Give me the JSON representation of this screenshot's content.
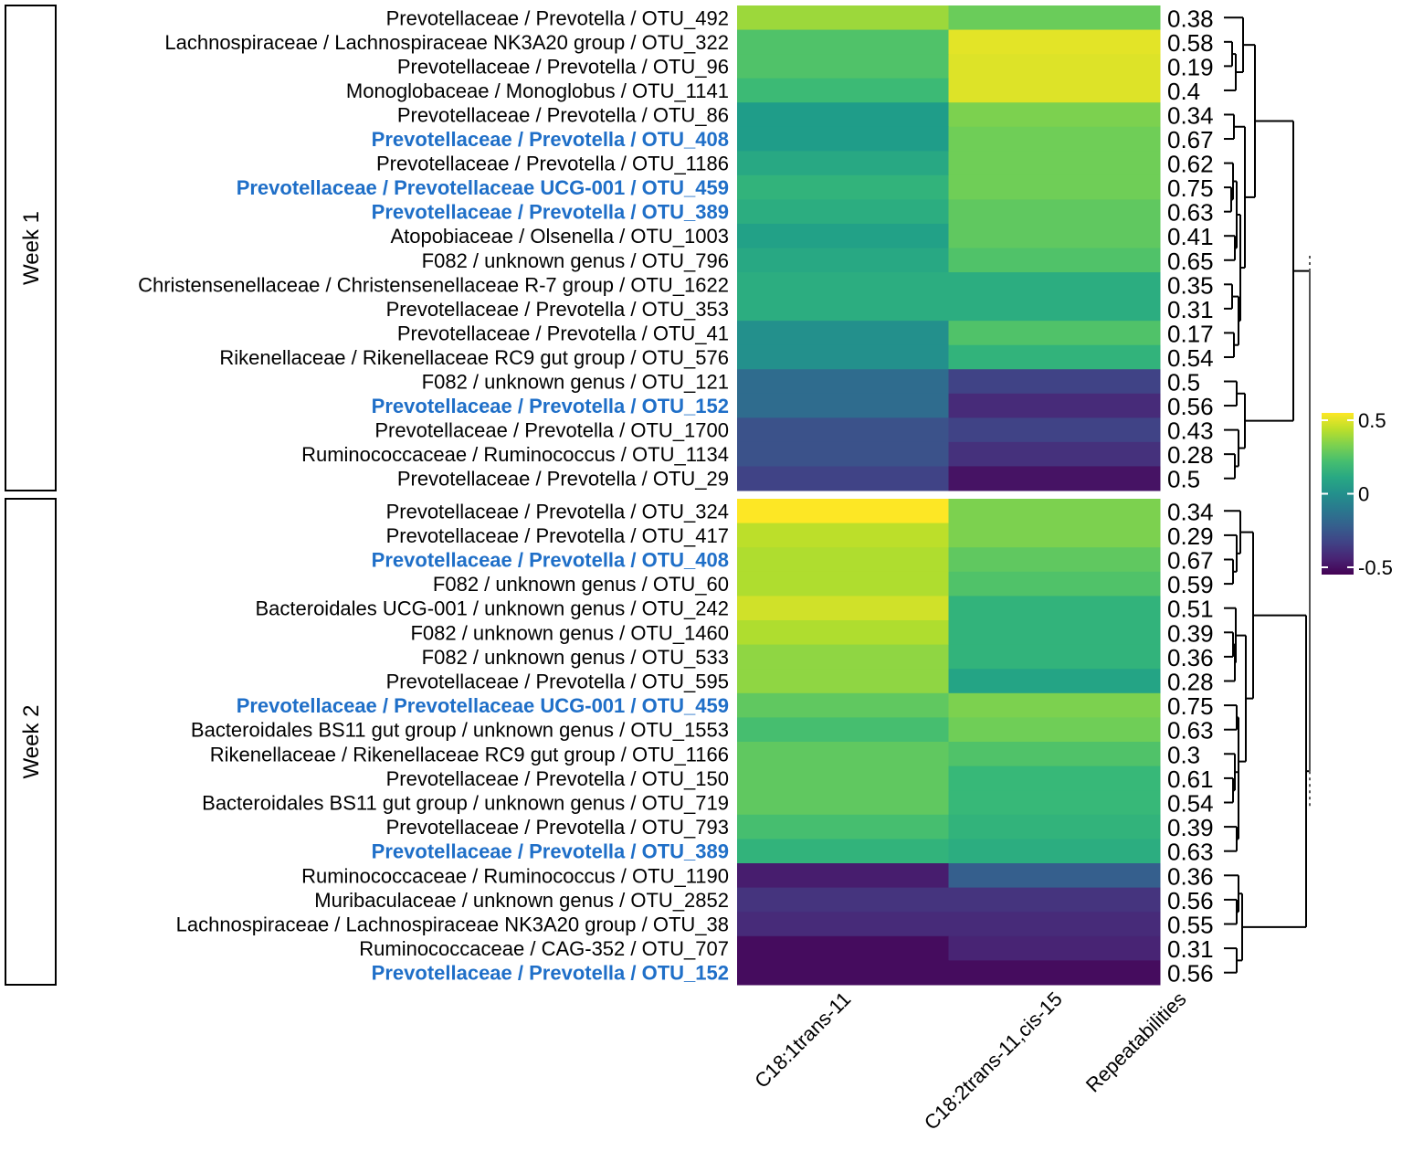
{
  "chart_data": {
    "type": "heatmap",
    "columns": [
      "C18:1trans-11",
      "C18:2trans-11,cis-15",
      "Repeatabilities"
    ],
    "color_scale": {
      "name": "viridis",
      "min": -0.5,
      "max": 0.5,
      "ticks": [
        0.5,
        0,
        -0.5
      ],
      "tick_labels": [
        "0.5",
        "0",
        "-0.5"
      ]
    },
    "highlight_color": "#1f6fc8",
    "groups": [
      {
        "label": "Week 1",
        "rows": [
          {
            "label": "Prevotellaceae / Prevotella / OTU_492",
            "values": [
              0.35,
              0.27
            ],
            "rep": "0.38",
            "hl": false
          },
          {
            "label": "Lachnospiraceae / Lachnospiraceae NK3A20 group / OTU_322",
            "values": [
              0.22,
              0.46
            ],
            "rep": "0.58",
            "hl": false
          },
          {
            "label": "Prevotellaceae / Prevotella / OTU_96",
            "values": [
              0.22,
              0.45
            ],
            "rep": "0.19",
            "hl": false
          },
          {
            "label": "Monoglobaceae / Monoglobus / OTU_1141",
            "values": [
              0.18,
              0.45
            ],
            "rep": "0.4",
            "hl": false
          },
          {
            "label": "Prevotellaceae / Prevotella / OTU_86",
            "values": [
              0.05,
              0.3
            ],
            "rep": "0.34",
            "hl": false
          },
          {
            "label": "Prevotellaceae / Prevotella / OTU_408",
            "values": [
              0.05,
              0.28
            ],
            "rep": "0.67",
            "hl": true
          },
          {
            "label": "Prevotellaceae / Prevotella / OTU_1186",
            "values": [
              0.1,
              0.28
            ],
            "rep": "0.62",
            "hl": false
          },
          {
            "label": "Prevotellaceae / Prevotellaceae UCG-001 / OTU_459",
            "values": [
              0.15,
              0.28
            ],
            "rep": "0.75",
            "hl": true
          },
          {
            "label": "Prevotellaceae / Prevotella / OTU_389",
            "values": [
              0.12,
              0.25
            ],
            "rep": "0.63",
            "hl": true
          },
          {
            "label": "Atopobiaceae / Olsenella / OTU_1003",
            "values": [
              0.07,
              0.25
            ],
            "rep": "0.41",
            "hl": false
          },
          {
            "label": "F082 / unknown genus / OTU_796",
            "values": [
              0.1,
              0.22
            ],
            "rep": "0.65",
            "hl": false
          },
          {
            "label": "Christensenellaceae / Christensenellaceae R-7 group / OTU_1622",
            "values": [
              0.12,
              0.12
            ],
            "rep": "0.35",
            "hl": false
          },
          {
            "label": "Prevotellaceae / Prevotella / OTU_353",
            "values": [
              0.12,
              0.12
            ],
            "rep": "0.31",
            "hl": false
          },
          {
            "label": "Prevotellaceae / Prevotella / OTU_41",
            "values": [
              0.0,
              0.22
            ],
            "rep": "0.17",
            "hl": false
          },
          {
            "label": "Rikenellaceae / Rikenellaceae RC9 gut group / OTU_576",
            "values": [
              0.0,
              0.15
            ],
            "rep": "0.54",
            "hl": false
          },
          {
            "label": "F082 / unknown genus / OTU_121",
            "values": [
              -0.15,
              -0.3
            ],
            "rep": "0.5",
            "hl": false
          },
          {
            "label": "Prevotellaceae / Prevotella / OTU_152",
            "values": [
              -0.15,
              -0.38
            ],
            "rep": "0.56",
            "hl": true
          },
          {
            "label": "Prevotellaceae / Prevotella / OTU_1700",
            "values": [
              -0.25,
              -0.3
            ],
            "rep": "0.43",
            "hl": false
          },
          {
            "label": "Ruminococcaceae / Ruminococcus / OTU_1134",
            "values": [
              -0.25,
              -0.36
            ],
            "rep": "0.28",
            "hl": false
          },
          {
            "label": "Prevotellaceae / Prevotella / OTU_29",
            "values": [
              -0.3,
              -0.45
            ],
            "rep": "0.5",
            "hl": false
          }
        ],
        "tree": {
          "h": 0.7,
          "c": [
            {
              "h": 0.28,
              "c": [
                {
                  "h": 0.15,
                  "c": [
                    0,
                    {
                      "h": 0.07,
                      "c": [
                        {
                          "h": 0.03,
                          "c": [
                            1,
                            2
                          ]
                        },
                        3
                      ]
                    }
                  ]
                },
                {
                  "h": 0.17,
                  "c": [
                    {
                      "h": 0.05,
                      "c": [
                        4,
                        5
                      ]
                    },
                    {
                      "h": 0.12,
                      "c": [
                        {
                          "h": 0.08,
                          "c": [
                            {
                              "h": 0.04,
                              "c": [
                                6,
                                {
                                  "h": 0.02,
                                  "c": [
                                    7,
                                    8
                                  ]
                                }
                              ]
                            },
                            {
                              "h": 0.06,
                              "c": [
                                9,
                                10
                              ]
                            }
                          ]
                        },
                        {
                          "h": 0.1,
                          "c": [
                            {
                              "h": 0.03,
                              "c": [
                                11,
                                12
                              ]
                            },
                            {
                              "h": 0.05,
                              "c": [
                                13,
                                14
                              ]
                            }
                          ]
                        }
                      ]
                    }
                  ]
                }
              ]
            },
            {
              "h": 0.17,
              "c": [
                {
                  "h": 0.08,
                  "c": [
                    15,
                    16
                  ]
                },
                {
                  "h": 0.1,
                  "c": [
                    17,
                    {
                      "h": 0.06,
                      "c": [
                        18,
                        19
                      ]
                    }
                  ]
                }
              ]
            }
          ]
        }
      },
      {
        "label": "Week 2",
        "rows": [
          {
            "label": "Prevotellaceae / Prevotella / OTU_324",
            "values": [
              0.5,
              0.3
            ],
            "rep": "0.34",
            "hl": false
          },
          {
            "label": "Prevotellaceae / Prevotella / OTU_417",
            "values": [
              0.4,
              0.3
            ],
            "rep": "0.29",
            "hl": false
          },
          {
            "label": "Prevotellaceae / Prevotella / OTU_408",
            "values": [
              0.38,
              0.25
            ],
            "rep": "0.67",
            "hl": true
          },
          {
            "label": "F082 / unknown genus / OTU_60",
            "values": [
              0.38,
              0.22
            ],
            "rep": "0.59",
            "hl": false
          },
          {
            "label": "Bacteroidales UCG-001 / unknown genus / OTU_242",
            "values": [
              0.43,
              0.15
            ],
            "rep": "0.51",
            "hl": false
          },
          {
            "label": "F082 / unknown genus / OTU_1460",
            "values": [
              0.38,
              0.15
            ],
            "rep": "0.39",
            "hl": false
          },
          {
            "label": "F082 / unknown genus / OTU_533",
            "values": [
              0.33,
              0.15
            ],
            "rep": "0.36",
            "hl": false
          },
          {
            "label": "Prevotellaceae / Prevotella / OTU_595",
            "values": [
              0.33,
              0.08
            ],
            "rep": "0.28",
            "hl": false
          },
          {
            "label": "Prevotellaceae / Prevotellaceae UCG-001 / OTU_459",
            "values": [
              0.25,
              0.3
            ],
            "rep": "0.75",
            "hl": true
          },
          {
            "label": "Bacteroidales BS11 gut group / unknown genus / OTU_1553",
            "values": [
              0.2,
              0.28
            ],
            "rep": "0.63",
            "hl": false
          },
          {
            "label": "Rikenellaceae / Rikenellaceae RC9 gut group / OTU_1166",
            "values": [
              0.25,
              0.22
            ],
            "rep": "0.3",
            "hl": false
          },
          {
            "label": "Prevotellaceae / Prevotella / OTU_150",
            "values": [
              0.25,
              0.17
            ],
            "rep": "0.61",
            "hl": false
          },
          {
            "label": "Bacteroidales BS11 gut group / unknown genus / OTU_719",
            "values": [
              0.25,
              0.17
            ],
            "rep": "0.54",
            "hl": false
          },
          {
            "label": "Prevotellaceae / Prevotella / OTU_793",
            "values": [
              0.2,
              0.15
            ],
            "rep": "0.39",
            "hl": false
          },
          {
            "label": "Prevotellaceae / Prevotella / OTU_389",
            "values": [
              0.15,
              0.12
            ],
            "rep": "0.63",
            "hl": true
          },
          {
            "label": "Ruminococcaceae / Ruminococcus / OTU_1190",
            "values": [
              -0.42,
              -0.2
            ],
            "rep": "0.36",
            "hl": false
          },
          {
            "label": "Muribaculaceae / unknown genus / OTU_2852",
            "values": [
              -0.35,
              -0.35
            ],
            "rep": "0.56",
            "hl": false
          },
          {
            "label": "Lachnospiraceae / Lachnospiraceae NK3A20 group / OTU_38",
            "values": [
              -0.38,
              -0.38
            ],
            "rep": "0.55",
            "hl": false
          },
          {
            "label": "Ruminococcaceae / CAG-352 / OTU_707",
            "values": [
              -0.47,
              -0.4
            ],
            "rep": "0.31",
            "hl": false
          },
          {
            "label": "Prevotellaceae / Prevotella / OTU_152",
            "values": [
              -0.47,
              -0.47
            ],
            "rep": "0.56",
            "hl": true
          }
        ],
        "tree": {
          "h": 0.84,
          "c": [
            {
              "h": 0.26,
              "c": [
                {
                  "h": 0.12,
                  "c": [
                    0,
                    {
                      "h": 0.08,
                      "c": [
                        1,
                        {
                          "h": 0.04,
                          "c": [
                            2,
                            3
                          ]
                        }
                      ]
                    }
                  ]
                },
                {
                  "h": 0.18,
                  "c": [
                    {
                      "h": 0.07,
                      "c": [
                        4,
                        {
                          "h": 0.06,
                          "c": [
                            {
                              "h": 0.04,
                              "c": [
                                5,
                                6
                              ]
                            },
                            7
                          ]
                        }
                      ]
                    },
                    {
                      "h": 0.1,
                      "c": [
                        {
                          "h": 0.08,
                          "c": [
                            8,
                            9
                          ]
                        },
                        {
                          "h": 0.1,
                          "c": [
                            {
                              "h": 0.06,
                              "c": [
                                10,
                                {
                                  "h": 0.04,
                                  "c": [
                                    11,
                                    12
                                  ]
                                }
                              ]
                            },
                            {
                              "h": 0.08,
                              "c": [
                                13,
                                14
                              ]
                            }
                          ]
                        }
                      ]
                    }
                  ]
                }
              ]
            },
            {
              "h": 0.14,
              "c": [
                {
                  "h": 0.1,
                  "c": [
                    15,
                    {
                      "h": 0.08,
                      "c": [
                        16,
                        17
                      ]
                    }
                  ]
                },
                {
                  "h": 0.08,
                  "c": [
                    18,
                    19
                  ]
                }
              ]
            }
          ]
        }
      }
    ],
    "top_join_height": 0.88
  }
}
